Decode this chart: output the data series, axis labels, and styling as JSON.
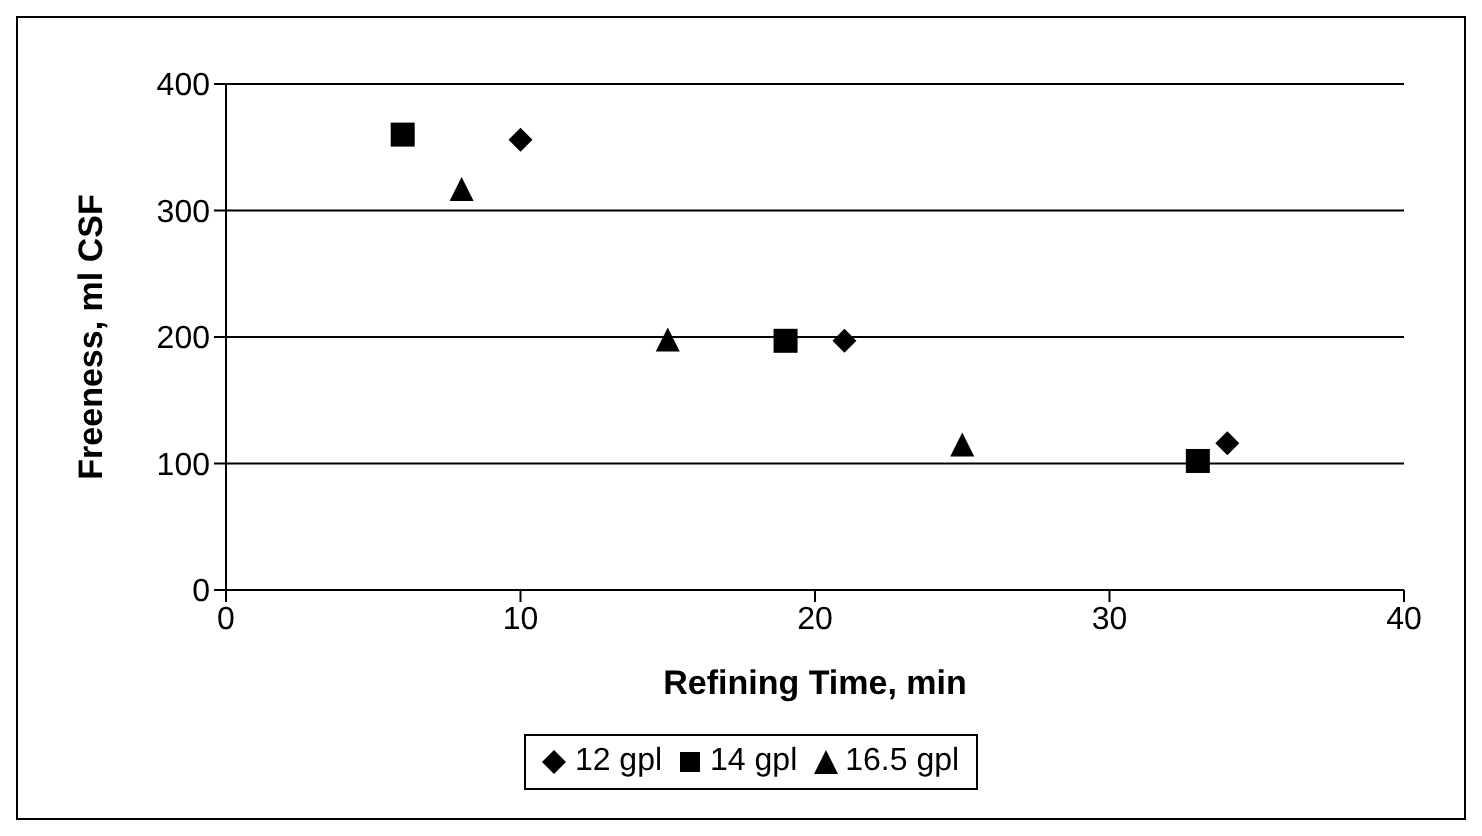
{
  "chart_data": {
    "type": "scatter",
    "xlabel": "Refining Time, min",
    "ylabel": "Freeness, ml CSF",
    "xlim": [
      0,
      40
    ],
    "xticks": [
      0,
      10,
      20,
      30,
      40
    ],
    "ylim": [
      0,
      400
    ],
    "yticks": [
      0,
      100,
      200,
      300,
      400
    ],
    "grid": "y",
    "legend": "bottom",
    "series": [
      {
        "name": "12 gpl",
        "color": "#000000",
        "marker": "diamond",
        "x": [
          10,
          21,
          34
        ],
        "values": [
          356,
          197,
          116
        ]
      },
      {
        "name": "14 gpl",
        "color": "#000000",
        "marker": "square",
        "x": [
          6,
          19,
          33
        ],
        "values": [
          360,
          197,
          102
        ]
      },
      {
        "name": "16.5 gpl",
        "color": "#000000",
        "marker": "triangle",
        "x": [
          8,
          15,
          25
        ],
        "values": [
          317,
          198,
          115
        ]
      }
    ]
  }
}
